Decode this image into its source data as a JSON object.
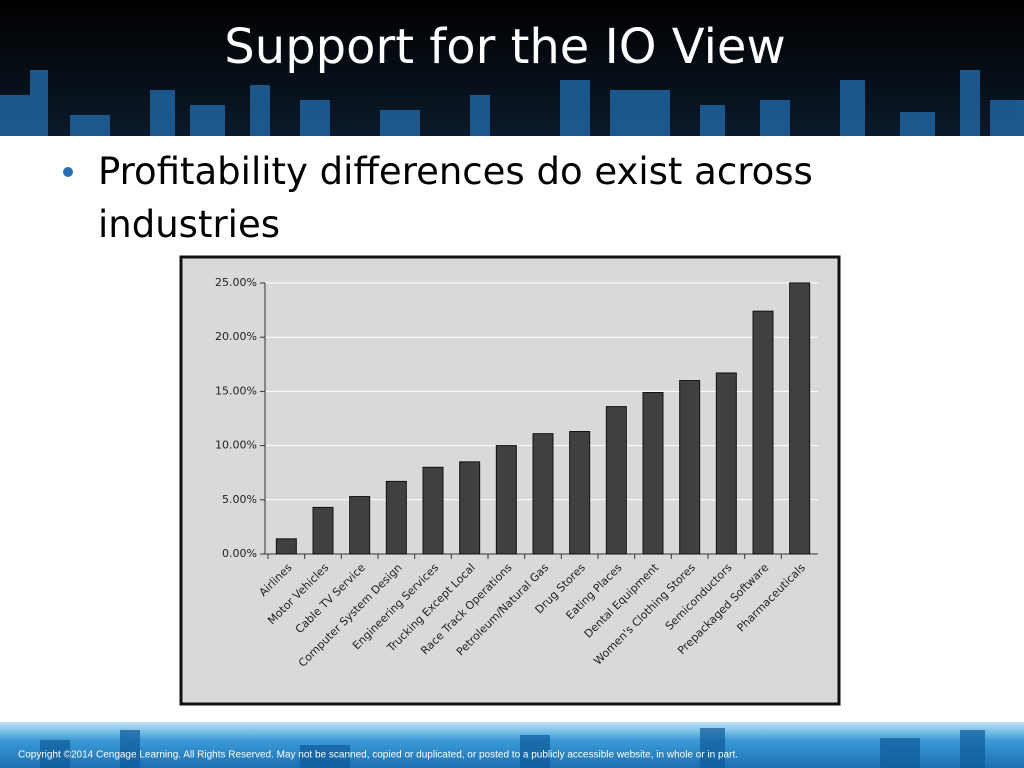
{
  "slide": {
    "title": "Support for the IO View",
    "bullet": "Profitability differences do exist across industries",
    "footer": "Copyright ©2014 Cengage Learning. All Rights Reserved. May not be scanned, copied or duplicated, or posted to a publicly accessible website, in whole or in part."
  },
  "chart_data": {
    "type": "bar",
    "categories": [
      "Airlines",
      "Motor Vehicles",
      "Cable TV Service",
      "Computer System Design",
      "Engineering Services",
      "Trucking Except Local",
      "Race Track Operations",
      "Petroleum/Natural Gas",
      "Drug Stores",
      "Eating Places",
      "Dental Equipment",
      "Women's Clothing Stores",
      "Semiconductors",
      "Prepackaged Software",
      "Pharmaceuticals"
    ],
    "values": [
      1.4,
      4.3,
      5.3,
      6.7,
      8.0,
      8.5,
      10.0,
      11.1,
      11.3,
      13.6,
      14.9,
      16.0,
      16.7,
      22.4,
      25.0
    ],
    "color": "#404040",
    "ylim": [
      0,
      25
    ],
    "yticks": [
      {
        "value": 0,
        "label": "0.00%"
      },
      {
        "value": 5,
        "label": "5.00%"
      },
      {
        "value": 10,
        "label": "10.00%"
      },
      {
        "value": 15,
        "label": "15.00%"
      },
      {
        "value": 20,
        "label": "20.00%"
      },
      {
        "value": 25,
        "label": "25.00%"
      }
    ],
    "grid": true
  }
}
